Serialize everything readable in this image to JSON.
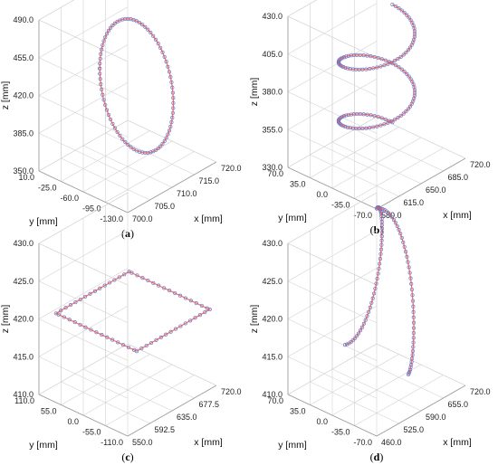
{
  "chart_data": [
    {
      "caption": "a",
      "type": "line3d",
      "shape": "circle",
      "zlabel": "z [mm]",
      "ylabel": "y [mm]",
      "xlabel": "x [mm]",
      "zticks": [
        "490.0",
        "455.0",
        "420.0",
        "385.0",
        "350.0"
      ],
      "yticks": [
        "10.0",
        "-25.0",
        "-60.0",
        "-95.0",
        "-130.0"
      ],
      "xticks": [
        "700.0",
        "705.0",
        "710.0",
        "715.0",
        "720.0"
      ],
      "xlim": [
        700,
        720
      ],
      "ylim": [
        -130,
        10
      ],
      "zlim": [
        350,
        490
      ],
      "series": [
        {
          "role": "reference",
          "color": "#6677cc",
          "style": "markers"
        },
        {
          "role": "measured",
          "color": "#e05a5a",
          "style": "line"
        }
      ]
    },
    {
      "caption": "b",
      "type": "line3d",
      "shape": "spiral",
      "zlabel": "z [mm]",
      "ylabel": "y [mm]",
      "xlabel": "x [mm]",
      "zticks": [
        "430.0",
        "405.0",
        "380.0",
        "355.0",
        "330.0"
      ],
      "yticks": [
        "70.0",
        "35.0",
        "0.0",
        "-35.0",
        "-70.0"
      ],
      "xticks": [
        "580.0",
        "615.0",
        "650.0",
        "685.0",
        "720.0"
      ],
      "xlim": [
        580,
        720
      ],
      "ylim": [
        -70,
        70
      ],
      "zlim": [
        330,
        430
      ],
      "series": [
        {
          "role": "reference",
          "color": "#6677cc",
          "style": "markers"
        },
        {
          "role": "measured",
          "color": "#e05a5a",
          "style": "line"
        }
      ]
    },
    {
      "caption": "c",
      "type": "line3d",
      "shape": "square",
      "zlabel": "z [mm]",
      "ylabel": "y [mm]",
      "xlabel": "x [mm]",
      "zticks": [
        "430.0",
        "425.0",
        "420.0",
        "415.0",
        "410.0"
      ],
      "yticks": [
        "110.0",
        "55.0",
        "0.0",
        "-55.0",
        "-110.0"
      ],
      "xticks": [
        "550.0",
        "592.5",
        "635.0",
        "677.5",
        "720.0"
      ],
      "xlim": [
        550,
        720
      ],
      "ylim": [
        -110,
        110
      ],
      "zlim": [
        410,
        430
      ],
      "series": [
        {
          "role": "reference",
          "color": "#6677cc",
          "style": "markers"
        },
        {
          "role": "measured",
          "color": "#e05a5a",
          "style": "line"
        }
      ]
    },
    {
      "caption": "d",
      "type": "line3d",
      "shape": "s-curve",
      "zlabel": "z [mm]",
      "ylabel": "y [mm]",
      "xlabel": "x [mm]",
      "zticks": [
        "430.0",
        "425.0",
        "420.0",
        "415.0",
        "410.0"
      ],
      "yticks": [
        "70.0",
        "35.0",
        "0.0",
        "-35.0",
        "-70.0"
      ],
      "xticks": [
        "460.0",
        "525.0",
        "590.0",
        "655.0",
        "720.0"
      ],
      "xlim": [
        460,
        720
      ],
      "ylim": [
        -70,
        70
      ],
      "zlim": [
        410,
        430
      ],
      "series": [
        {
          "role": "reference",
          "color": "#6677cc",
          "style": "markers"
        },
        {
          "role": "measured",
          "color": "#e05a5a",
          "style": "line"
        }
      ]
    }
  ]
}
